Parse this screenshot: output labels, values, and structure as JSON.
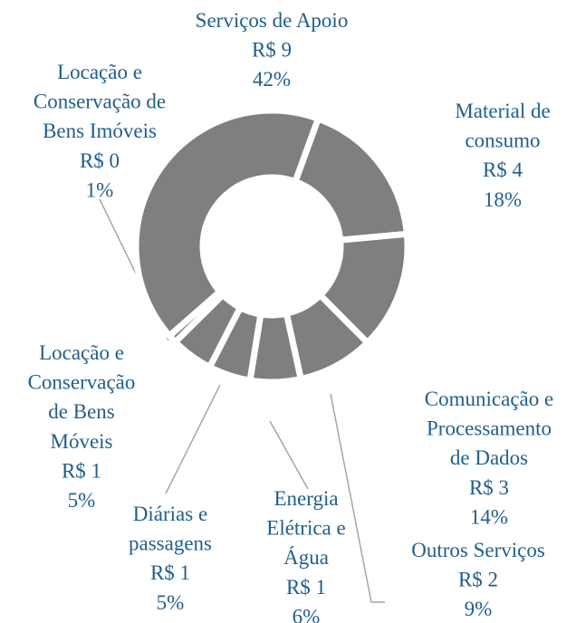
{
  "chart_data": {
    "type": "donut",
    "categories": [
      [
        "Material de",
        "consumo"
      ],
      [
        "Comunicação e",
        "Processamento",
        "de Dados"
      ],
      [
        "Outros Serviços"
      ],
      [
        "Energia",
        "Elétrica e",
        "Água"
      ],
      [
        "Diárias e",
        "passagens"
      ],
      [
        "Locação e",
        "Conservação",
        "de Bens",
        "Móveis"
      ],
      [
        "Locação e",
        "Conservação de",
        "Bens Imóveis"
      ],
      [
        "Serviços de Apoio"
      ]
    ],
    "amount_labels": [
      "R$ 4",
      "R$ 3",
      "R$ 2",
      "R$ 1",
      "R$ 1",
      "R$ 1",
      "R$ 0",
      "R$ 9"
    ],
    "values": [
      18,
      14,
      9,
      6,
      5,
      5,
      1,
      42
    ],
    "value_labels": [
      "18%",
      "14%",
      "9%",
      "6%",
      "5%",
      "5%",
      "1%",
      "42%"
    ],
    "color": "#7f7f7f",
    "label_color": "#215f8b"
  }
}
